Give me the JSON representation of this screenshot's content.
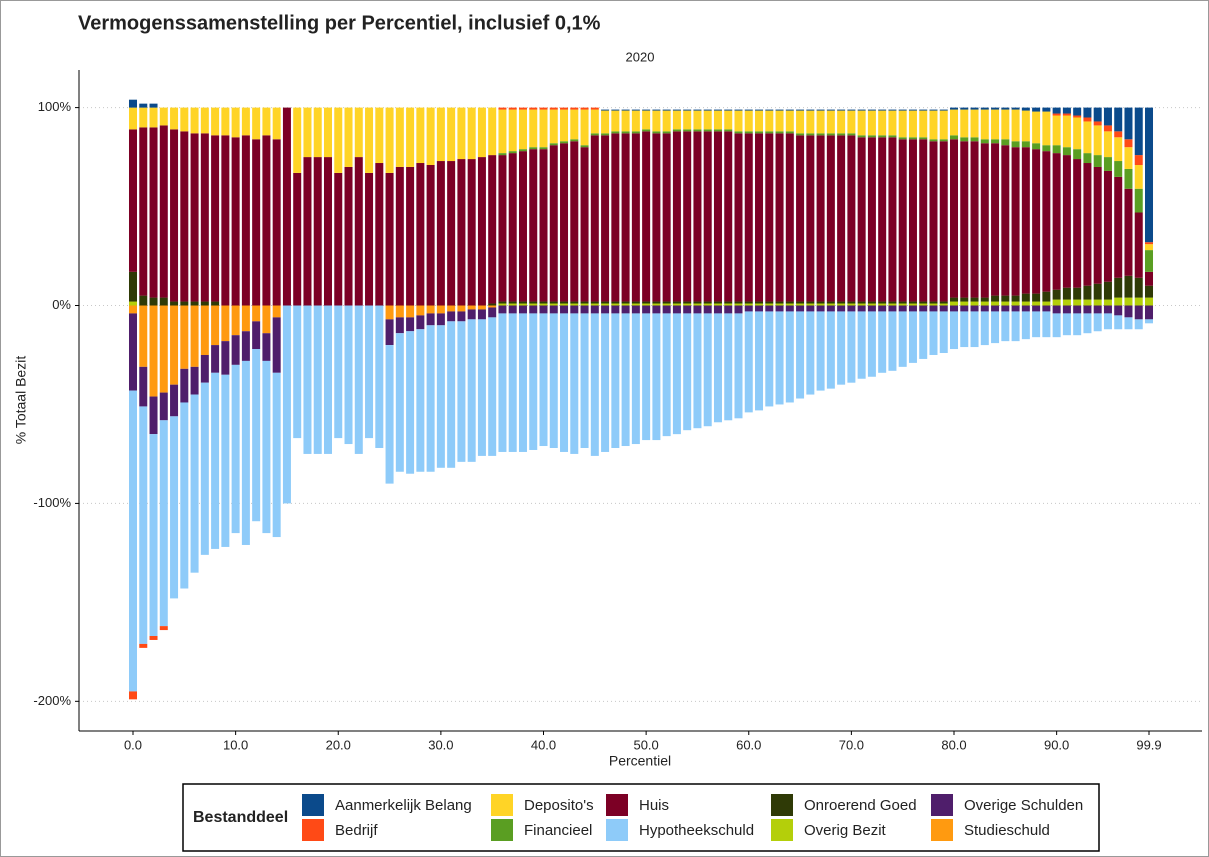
{
  "chart_data": {
    "type": "stacked-bar",
    "title": "Vermogenssamenstelling per Percentiel, inclusief 0,1%",
    "subtitle": "2020",
    "x_label": "Percentiel",
    "y_label": "% Totaal Bezit",
    "legend_title": "Bestanddeel",
    "legend": "bottom",
    "grid": true,
    "ylim": [
      -215,
      119
    ],
    "yticks": [
      {
        "value": 100,
        "label": "100%"
      },
      {
        "value": 0,
        "label": "0%"
      },
      {
        "value": -100,
        "label": "-100%"
      },
      {
        "value": -200,
        "label": "-200%"
      }
    ],
    "categories": [
      "0.0",
      null,
      null,
      null,
      null,
      null,
      null,
      null,
      null,
      null,
      "10.0",
      null,
      null,
      null,
      null,
      null,
      null,
      null,
      null,
      null,
      "20.0",
      null,
      null,
      null,
      null,
      null,
      null,
      null,
      null,
      null,
      "30.0",
      null,
      null,
      null,
      null,
      null,
      null,
      null,
      null,
      null,
      "40.0",
      null,
      null,
      null,
      null,
      null,
      null,
      null,
      null,
      null,
      "50.0",
      null,
      null,
      null,
      null,
      null,
      null,
      null,
      null,
      null,
      "60.0",
      null,
      null,
      null,
      null,
      null,
      null,
      null,
      null,
      null,
      "70.0",
      null,
      null,
      null,
      null,
      null,
      null,
      null,
      null,
      null,
      "80.0",
      null,
      null,
      null,
      null,
      null,
      null,
      null,
      null,
      null,
      "90.0",
      null,
      null,
      null,
      null,
      null,
      null,
      null,
      null,
      "99.9"
    ],
    "series": [
      {
        "name": "Aanmerkelijk Belang",
        "color": "#0b4a8b",
        "values": [
          4,
          2,
          2,
          0,
          0,
          0,
          0,
          0,
          0,
          0,
          0,
          0,
          0,
          0,
          0,
          0,
          0,
          0,
          0,
          0,
          0,
          0,
          0,
          0,
          0,
          0,
          0,
          0,
          0,
          0,
          0,
          0,
          0,
          0,
          0,
          0,
          0,
          0,
          0,
          0,
          0,
          0,
          0,
          0,
          0,
          0,
          0.5,
          0.5,
          0.5,
          0.5,
          0.5,
          0.5,
          0.5,
          0.5,
          0.5,
          0.5,
          0.5,
          0.5,
          0.5,
          0.5,
          0.5,
          0.5,
          0.5,
          0.5,
          0.5,
          0.5,
          0.5,
          0.5,
          0.5,
          0.5,
          0.5,
          0.5,
          0.5,
          0.5,
          0.5,
          0.5,
          0.5,
          0.5,
          0.5,
          0.5,
          1,
          1,
          1,
          1,
          1,
          1,
          1,
          1.5,
          2,
          2,
          3,
          3,
          4,
          5,
          7,
          9,
          12,
          16,
          24,
          68
        ]
      },
      {
        "name": "Bedrijf",
        "color": "#ff4a16",
        "values": [
          -4,
          -2,
          -2,
          -2,
          0,
          0,
          0,
          0,
          0,
          0,
          0,
          0,
          0,
          0,
          0,
          0,
          0,
          0,
          0,
          0,
          0,
          0,
          0,
          0,
          0,
          0,
          0,
          0,
          0,
          0,
          0,
          0,
          0,
          0,
          0,
          0,
          1,
          1,
          1,
          1,
          1,
          1,
          1,
          1,
          1,
          1,
          0,
          0,
          0,
          0,
          0,
          0,
          0,
          0,
          0,
          0,
          0,
          0,
          0,
          0,
          0,
          0,
          0,
          0,
          0,
          0,
          0,
          0,
          0,
          0,
          0,
          0,
          0,
          0,
          0,
          0,
          0,
          0,
          0,
          0,
          0,
          0,
          0,
          0,
          0,
          0,
          0,
          0,
          0,
          0,
          1,
          1,
          1,
          2,
          2,
          3,
          3,
          4,
          5,
          1
        ]
      },
      {
        "name": "Deposito's",
        "color": "#ffd426",
        "values": [
          11,
          10,
          10,
          9,
          11,
          12,
          13,
          13,
          14,
          14,
          15,
          14,
          16,
          14,
          16,
          0,
          33,
          25,
          25,
          25,
          33,
          30,
          25,
          33,
          28,
          33,
          30,
          30,
          28,
          29,
          27,
          27,
          26,
          26,
          25,
          24,
          22,
          21,
          20,
          19,
          19,
          17,
          16,
          15,
          18,
          12,
          11.5,
          10.5,
          10.5,
          10.5,
          9.5,
          10.5,
          10.5,
          9.5,
          9.5,
          9.5,
          9.5,
          9.5,
          9.5,
          10.5,
          10.5,
          10.5,
          10.5,
          10.5,
          10.5,
          11.5,
          11.5,
          11.5,
          11.5,
          11.5,
          11.5,
          12.5,
          12.5,
          12.5,
          12.5,
          13.5,
          13.5,
          13.5,
          14.5,
          14.5,
          13,
          14,
          14,
          15,
          15,
          15,
          16,
          15.5,
          16,
          17,
          15,
          16,
          16,
          16,
          15,
          13,
          12,
          11,
          12,
          3
        ]
      },
      {
        "name": "Financieel",
        "color": "#5a9e22",
        "values": [
          0,
          0,
          0,
          0,
          0,
          0,
          0,
          0,
          0,
          0,
          0,
          0,
          0,
          0,
          0,
          0,
          0,
          0,
          0,
          0,
          0,
          0,
          0,
          0,
          0,
          0,
          0,
          0,
          0,
          0,
          0,
          0,
          0,
          0,
          0,
          0,
          1,
          1,
          1,
          1,
          1,
          1,
          1,
          1,
          1,
          1,
          1,
          1,
          1,
          1,
          1,
          1,
          1,
          1,
          1,
          1,
          1,
          1,
          1,
          1,
          1,
          1,
          1,
          1,
          1,
          1,
          1,
          1,
          1,
          1,
          1,
          1,
          1,
          1,
          1,
          1,
          1,
          1,
          1,
          1,
          2,
          2,
          2,
          2,
          2,
          3,
          3,
          3,
          3,
          3,
          4,
          4,
          5,
          5,
          6,
          7,
          8,
          10,
          12,
          11
        ]
      },
      {
        "name": "Huis",
        "color": "#7c0025",
        "values": [
          72,
          85,
          86,
          87,
          87,
          86,
          85,
          85,
          84,
          86,
          85,
          86,
          84,
          86,
          84,
          100,
          67,
          75,
          75,
          75,
          67,
          70,
          75,
          67,
          72,
          67,
          70,
          70,
          72,
          71,
          73,
          73,
          74,
          74,
          75,
          75,
          74,
          75,
          76,
          77,
          77,
          79,
          80,
          81,
          78,
          84,
          84,
          85,
          85,
          85,
          86,
          85,
          85,
          86,
          86,
          86,
          86,
          86,
          86,
          85,
          85,
          85,
          85,
          85,
          85,
          84,
          84,
          84,
          84,
          84,
          84,
          83,
          83,
          83,
          83,
          82,
          82,
          82,
          81,
          81,
          80,
          79,
          79,
          78,
          77,
          76,
          75,
          74,
          73,
          71,
          69,
          67,
          65,
          62,
          59,
          56,
          51,
          44,
          33,
          7
        ]
      },
      {
        "name": "Hypotheekschuld",
        "color": "#8ecbf9",
        "values": [
          -152,
          -120,
          -102,
          -104,
          -92,
          -94,
          -90,
          -87,
          -89,
          -87,
          -85,
          -93,
          -87,
          -87,
          -83,
          -100,
          -67,
          -75,
          -75,
          -75,
          -67,
          -70,
          -75,
          -67,
          -72,
          -70,
          -70,
          -72,
          -72,
          -74,
          -72,
          -74,
          -71,
          -72,
          -69,
          -70,
          -70,
          -70,
          -70,
          -69,
          -67,
          -68,
          -70,
          -71,
          -68,
          -72,
          -70,
          -68,
          -67,
          -66,
          -64,
          -64,
          -62,
          -61,
          -59,
          -58,
          -57,
          -55,
          -54,
          -53,
          -51,
          -50,
          -48,
          -47,
          -46,
          -44,
          -42,
          -40,
          -39,
          -37,
          -36,
          -34,
          -33,
          -31,
          -30,
          -28,
          -26,
          -24,
          -22,
          -21,
          -19,
          -18,
          -18,
          -17,
          -16,
          -15,
          -15,
          -14,
          -13,
          -13,
          -12,
          -11,
          -11,
          -10,
          -9,
          -8,
          -7,
          -6,
          -5,
          -2
        ]
      },
      {
        "name": "Onroerend Goed",
        "color": "#2f3a06",
        "values": [
          15,
          5,
          4,
          4,
          2,
          2,
          2,
          2,
          2,
          0,
          0,
          0,
          0,
          0,
          0,
          0,
          0,
          0,
          0,
          0,
          0,
          0,
          0,
          0,
          0,
          0,
          0,
          0,
          0,
          0,
          0,
          0,
          0,
          0,
          0,
          1,
          1,
          1,
          1,
          1,
          1,
          1,
          1,
          1,
          1,
          1,
          1,
          1,
          1,
          1,
          1,
          1,
          1,
          1,
          1,
          1,
          1,
          1,
          1,
          1,
          1,
          1,
          1,
          1,
          1,
          1,
          1,
          1,
          1,
          1,
          1,
          1,
          1,
          1,
          1,
          1,
          1,
          1,
          1,
          1,
          2,
          2,
          2,
          2,
          3,
          3,
          3,
          4,
          4,
          5,
          5,
          6,
          6,
          7,
          8,
          9,
          10,
          11,
          10,
          6
        ]
      },
      {
        "name": "Overig Bezit",
        "color": "#b4cf0a",
        "values": [
          2,
          0,
          0,
          0,
          0,
          0,
          0,
          0,
          0,
          0,
          0,
          0,
          0,
          0,
          0,
          0,
          0,
          0,
          0,
          0,
          0,
          0,
          0,
          0,
          0,
          0,
          0,
          0,
          0,
          0,
          0,
          0,
          0,
          0,
          0,
          0,
          1,
          1,
          1,
          1,
          1,
          1,
          1,
          1,
          1,
          1,
          1,
          1,
          1,
          1,
          1,
          1,
          1,
          1,
          1,
          1,
          1,
          1,
          1,
          1,
          1,
          1,
          1,
          1,
          1,
          1,
          1,
          1,
          1,
          1,
          1,
          1,
          1,
          1,
          1,
          1,
          1,
          1,
          1,
          1,
          2,
          2,
          2,
          2,
          2,
          2,
          2,
          2,
          2,
          2,
          3,
          3,
          3,
          3,
          3,
          3,
          4,
          4,
          4,
          4
        ]
      },
      {
        "name": "Overige Schulden",
        "color": "#4f1e6b",
        "values": [
          -39,
          -20,
          -19,
          -14,
          -16,
          -17,
          -14,
          -14,
          -14,
          -17,
          -15,
          -15,
          -14,
          -14,
          -28,
          0,
          0,
          0,
          0,
          0,
          0,
          0,
          0,
          0,
          0,
          -13,
          -8,
          -7,
          -7,
          -6,
          -6,
          -5,
          -5,
          -5,
          -5,
          -5,
          -4,
          -4,
          -4,
          -4,
          -4,
          -4,
          -4,
          -4,
          -4,
          -4,
          -4,
          -4,
          -4,
          -4,
          -4,
          -4,
          -4,
          -4,
          -4,
          -4,
          -4,
          -4,
          -4,
          -4,
          -3,
          -3,
          -3,
          -3,
          -3,
          -3,
          -3,
          -3,
          -3,
          -3,
          -3,
          -3,
          -3,
          -3,
          -3,
          -3,
          -3,
          -3,
          -3,
          -3,
          -3,
          -3,
          -3,
          -3,
          -3,
          -3,
          -3,
          -3,
          -3,
          -3,
          -4,
          -4,
          -4,
          -4,
          -4,
          -4,
          -5,
          -6,
          -7,
          -7
        ]
      },
      {
        "name": "Studieschuld",
        "color": "#ff9a10",
        "values": [
          -4,
          -31,
          -46,
          -44,
          -40,
          -32,
          -31,
          -25,
          -20,
          -18,
          -15,
          -13,
          -8,
          -14,
          -6,
          0,
          0,
          0,
          0,
          0,
          0,
          0,
          0,
          0,
          0,
          -7,
          -6,
          -6,
          -5,
          -4,
          -4,
          -3,
          -3,
          -2,
          -2,
          -1,
          0,
          0,
          0,
          0,
          0,
          0,
          0,
          0,
          0,
          0,
          0,
          0,
          0,
          0,
          0,
          0,
          0,
          0,
          0,
          0,
          0,
          0,
          0,
          0,
          0,
          0,
          0,
          0,
          0,
          0,
          0,
          0,
          0,
          0,
          0,
          0,
          0,
          0,
          0,
          0,
          0,
          0,
          0,
          0,
          0,
          0,
          0,
          0,
          0,
          0,
          0,
          0,
          0,
          0,
          0,
          0,
          0,
          0,
          0,
          0,
          0,
          0,
          0,
          0
        ]
      }
    ]
  }
}
